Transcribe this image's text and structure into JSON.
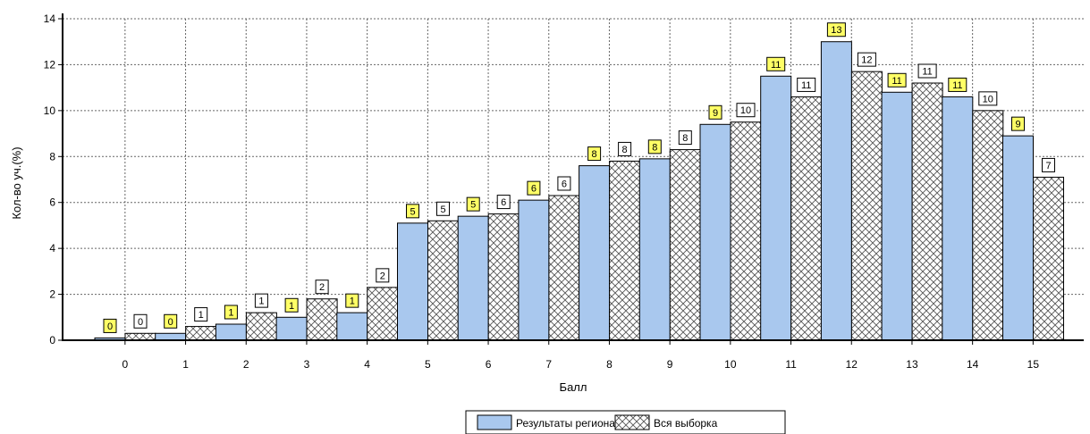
{
  "chart_data": {
    "type": "bar",
    "xlabel": "Балл",
    "ylabel": "Кол-во уч.(%)",
    "categories": [
      "0",
      "1",
      "2",
      "3",
      "4",
      "5",
      "6",
      "7",
      "8",
      "9",
      "10",
      "11",
      "12",
      "13",
      "14",
      "15"
    ],
    "ylim": [
      0,
      14
    ],
    "yticks": [
      0,
      2,
      4,
      6,
      8,
      10,
      12,
      14
    ],
    "grid": true,
    "legend_position": "bottom-center",
    "series": [
      {
        "name": "Результаты региона",
        "color": "#a9c8ee",
        "pattern": "solid",
        "values": [
          0.1,
          0.3,
          0.7,
          1.0,
          1.2,
          5.1,
          5.4,
          6.1,
          7.6,
          7.9,
          9.4,
          11.5,
          13.0,
          10.8,
          10.6,
          8.9
        ],
        "labels": [
          "0",
          "0",
          "1",
          "1",
          "1",
          "5",
          "5",
          "6",
          "8",
          "8",
          "9",
          "11",
          "13",
          "11",
          "11",
          "9"
        ],
        "label_color": "#ffff66"
      },
      {
        "name": "Вся выборка",
        "color": "#ffffff",
        "pattern": "crosshatch",
        "values": [
          0.3,
          0.6,
          1.2,
          1.8,
          2.3,
          5.2,
          5.5,
          6.3,
          7.8,
          8.3,
          9.5,
          10.6,
          11.7,
          11.2,
          10.0,
          7.1
        ],
        "labels": [
          "0",
          "1",
          "1",
          "2",
          "2",
          "5",
          "6",
          "6",
          "8",
          "8",
          "10",
          "11",
          "12",
          "11",
          "10",
          "7"
        ],
        "label_color": "#ffffff"
      }
    ]
  }
}
